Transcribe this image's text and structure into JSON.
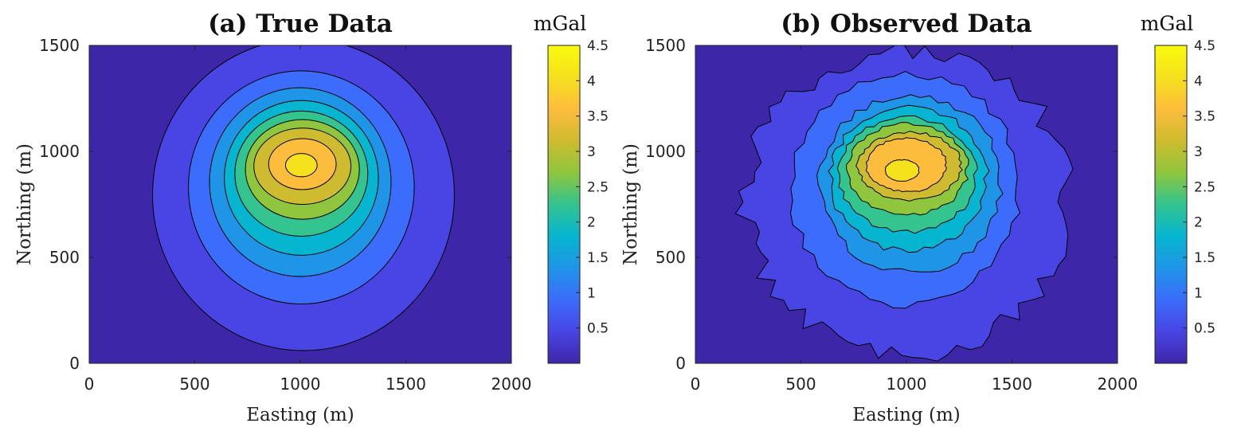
{
  "chart_data": [
    {
      "type": "heatmap",
      "subtype": "filled-contour",
      "title": "(a) True Data",
      "xlabel": "Easting (m)",
      "ylabel": "Northing (m)",
      "xlim": [
        0,
        2000
      ],
      "ylim": [
        0,
        1500
      ],
      "xticks": [
        "0",
        "500",
        "1000",
        "1500",
        "2000"
      ],
      "yticks": [
        "0",
        "500",
        "1000",
        "1500"
      ],
      "colorbar": {
        "label": "mGal",
        "range": [
          0,
          4.5
        ],
        "ticks": [
          "0.5",
          "1",
          "1.5",
          "2",
          "2.5",
          "3",
          "3.5",
          "4",
          "4.5"
        ]
      },
      "peak": {
        "x": 1000,
        "y": 930,
        "value": 4.5
      },
      "contour_levels": [
        0.5,
        1,
        1.5,
        2,
        2.5,
        3,
        3.5,
        4,
        4.5
      ],
      "contours": [
        {
          "level": 0.5,
          "x_extent": [
            300,
            1730
          ],
          "y_extent": [
            60,
            1530
          ]
        },
        {
          "level": 1.0,
          "x_extent": [
            470,
            1540
          ],
          "y_extent": [
            280,
            1380
          ]
        },
        {
          "level": 1.5,
          "x_extent": [
            570,
            1430
          ],
          "y_extent": [
            410,
            1300
          ]
        },
        {
          "level": 2.0,
          "x_extent": [
            640,
            1370
          ],
          "y_extent": [
            510,
            1240
          ]
        },
        {
          "level": 2.5,
          "x_extent": [
            690,
            1320
          ],
          "y_extent": [
            600,
            1190
          ]
        },
        {
          "level": 3.0,
          "x_extent": [
            740,
            1280
          ],
          "y_extent": [
            680,
            1150
          ]
        },
        {
          "level": 3.5,
          "x_extent": [
            780,
            1240
          ],
          "y_extent": [
            750,
            1110
          ]
        },
        {
          "level": 4.0,
          "x_extent": [
            850,
            1170
          ],
          "y_extent": [
            820,
            1060
          ]
        },
        {
          "level": 4.5,
          "x_extent": [
            930,
            1080
          ],
          "y_extent": [
            880,
            990
          ]
        }
      ]
    },
    {
      "type": "heatmap",
      "subtype": "filled-contour",
      "title": "(b) Observed Data",
      "xlabel": "Easting (m)",
      "ylabel": "Northing (m)",
      "xlim": [
        0,
        2000
      ],
      "ylim": [
        0,
        1500
      ],
      "xticks": [
        "0",
        "500",
        "1000",
        "1500",
        "2000"
      ],
      "yticks": [
        "0",
        "500",
        "1000",
        "1500"
      ],
      "colorbar": {
        "label": "mGal",
        "range": [
          0,
          4.5
        ],
        "ticks": [
          "0.5",
          "1",
          "1.5",
          "2",
          "2.5",
          "3",
          "3.5",
          "4",
          "4.5"
        ]
      },
      "peak": {
        "x": 980,
        "y": 920,
        "value": 4.5
      },
      "contour_levels": [
        0.5,
        1,
        1.5,
        2,
        2.5,
        3,
        3.5,
        4,
        4.5
      ],
      "contours": [
        {
          "level": 0.5,
          "x_extent": [
            240,
            1770
          ],
          "y_extent": [
            40,
            1480
          ]
        },
        {
          "level": 1.0,
          "x_extent": [
            450,
            1540
          ],
          "y_extent": [
            280,
            1370
          ]
        },
        {
          "level": 1.5,
          "x_extent": [
            590,
            1450
          ],
          "y_extent": [
            430,
            1260
          ]
        },
        {
          "level": 2.0,
          "x_extent": [
            640,
            1380
          ],
          "y_extent": [
            530,
            1210
          ]
        },
        {
          "level": 2.5,
          "x_extent": [
            680,
            1330
          ],
          "y_extent": [
            620,
            1160
          ]
        },
        {
          "level": 3.0,
          "x_extent": [
            720,
            1290
          ],
          "y_extent": [
            700,
            1130
          ]
        },
        {
          "level": 3.5,
          "x_extent": [
            770,
            1260
          ],
          "y_extent": [
            770,
            1090
          ]
        },
        {
          "level": 4.0,
          "x_extent": [
            810,
            1190
          ],
          "y_extent": [
            810,
            1060
          ]
        },
        {
          "level": 4.5,
          "x_extent": [
            900,
            1060
          ],
          "y_extent": [
            860,
            960
          ]
        }
      ]
    }
  ],
  "colormap": [
    "#3e26a8",
    "#4845e4",
    "#3b6cfb",
    "#1f95e8",
    "#06b5cf",
    "#33c48f",
    "#8fc63e",
    "#cfbb2f",
    "#fdbd3c",
    "#f6e11d",
    "#f9fb0e"
  ]
}
